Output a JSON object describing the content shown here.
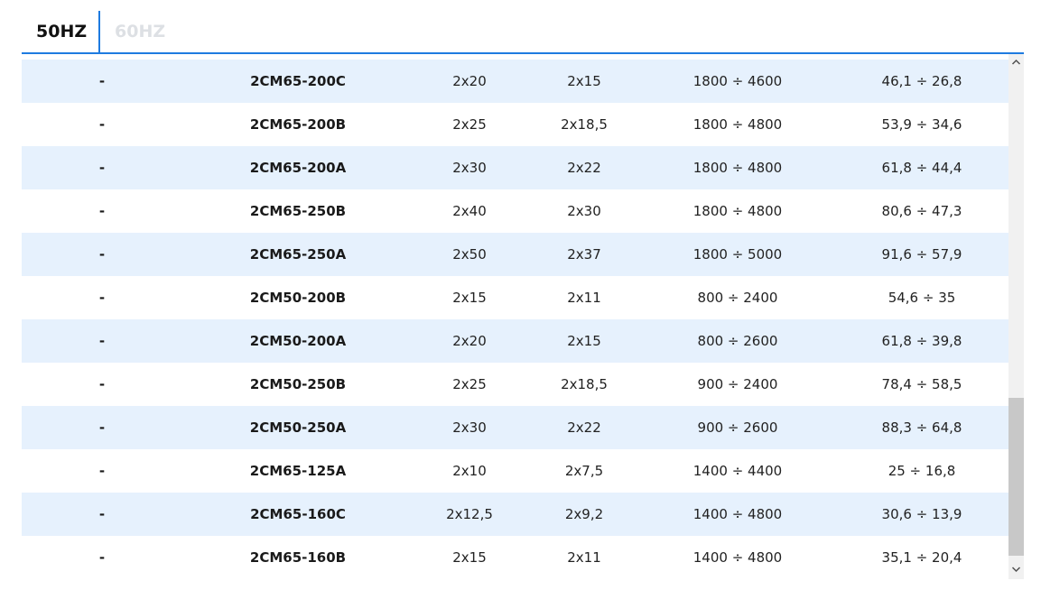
{
  "tabs": [
    "50HZ",
    "60HZ"
  ],
  "table": {
    "rows": [
      [
        "-",
        "2CM65-200C",
        "2x20",
        "2x15",
        "1800 ÷ 4600",
        "46,1 ÷ 26,8"
      ],
      [
        "-",
        "2CM65-200B",
        "2x25",
        "2x18,5",
        "1800 ÷ 4800",
        "53,9 ÷ 34,6"
      ],
      [
        "-",
        "2CM65-200A",
        "2x30",
        "2x22",
        "1800 ÷ 4800",
        "61,8 ÷ 44,4"
      ],
      [
        "-",
        "2CM65-250B",
        "2x40",
        "2x30",
        "1800 ÷ 4800",
        "80,6 ÷ 47,3"
      ],
      [
        "-",
        "2CM65-250A",
        "2x50",
        "2x37",
        "1800 ÷ 5000",
        "91,6 ÷ 57,9"
      ],
      [
        "-",
        "2CM50-200B",
        "2x15",
        "2x11",
        "800 ÷ 2400",
        "54,6 ÷ 35"
      ],
      [
        "-",
        "2CM50-200A",
        "2x20",
        "2x15",
        "800 ÷ 2600",
        "61,8 ÷ 39,8"
      ],
      [
        "-",
        "2CM50-250B",
        "2x25",
        "2x18,5",
        "900 ÷ 2400",
        "78,4 ÷ 58,5"
      ],
      [
        "-",
        "2CM50-250A",
        "2x30",
        "2x22",
        "900 ÷ 2600",
        "88,3 ÷ 64,8"
      ],
      [
        "-",
        "2CM65-125A",
        "2x10",
        "2x7,5",
        "1400 ÷ 4400",
        "25 ÷ 16,8"
      ],
      [
        "-",
        "2CM65-160C",
        "2x12,5",
        "2x9,2",
        "1400 ÷ 4800",
        "30,6 ÷ 13,9"
      ],
      [
        "-",
        "2CM65-160B",
        "2x15",
        "2x11",
        "1400 ÷ 4800",
        "35,1 ÷ 20,4"
      ]
    ]
  }
}
